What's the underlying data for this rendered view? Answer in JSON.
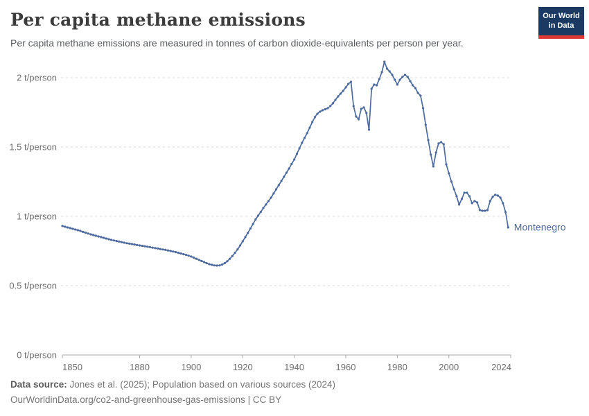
{
  "header": {
    "title": "Per capita methane emissions",
    "subtitle": "Per capita methane emissions are measured in tonnes of carbon dioxide-equivalents per person per year.",
    "logo": {
      "line1": "Our World",
      "line2": "in Data",
      "bg_color": "#1a3a64",
      "bar_color": "#dc3b33"
    }
  },
  "chart_data": {
    "type": "line",
    "title": "Per capita methane emissions",
    "entity": "Montenegro",
    "unit": "t/person",
    "xlim": [
      1850,
      2024
    ],
    "ylim": [
      0,
      2.15
    ],
    "grid": "horizontal-dashed",
    "legend_position": "end-of-line-label",
    "line_color": "#4C6A9D",
    "marker": "dot",
    "x_ticks": [
      1850,
      1880,
      1900,
      1920,
      1940,
      1960,
      1980,
      2000,
      2024
    ],
    "x_tick_labels": [
      "1850",
      "1880",
      "1900",
      "1920",
      "1940",
      "1960",
      "1980",
      "2000",
      "2024"
    ],
    "y_ticks": [
      {
        "value": 0,
        "label": "0 t/person"
      },
      {
        "value": 0.5,
        "label": "0.5 t/person"
      },
      {
        "value": 1,
        "label": "1 t/person"
      },
      {
        "value": 1.5,
        "label": "1.5 t/person"
      },
      {
        "value": 2,
        "label": "2 t/person"
      }
    ],
    "x": [
      1850,
      1851,
      1852,
      1853,
      1854,
      1855,
      1856,
      1857,
      1858,
      1859,
      1860,
      1861,
      1862,
      1863,
      1864,
      1865,
      1866,
      1867,
      1868,
      1869,
      1870,
      1871,
      1872,
      1873,
      1874,
      1875,
      1876,
      1877,
      1878,
      1879,
      1880,
      1881,
      1882,
      1883,
      1884,
      1885,
      1886,
      1887,
      1888,
      1889,
      1890,
      1891,
      1892,
      1893,
      1894,
      1895,
      1896,
      1897,
      1898,
      1899,
      1900,
      1901,
      1902,
      1903,
      1904,
      1905,
      1906,
      1907,
      1908,
      1909,
      1910,
      1911,
      1912,
      1913,
      1914,
      1915,
      1916,
      1917,
      1918,
      1919,
      1920,
      1921,
      1922,
      1923,
      1924,
      1925,
      1926,
      1927,
      1928,
      1929,
      1930,
      1931,
      1932,
      1933,
      1934,
      1935,
      1936,
      1937,
      1938,
      1939,
      1940,
      1941,
      1942,
      1943,
      1944,
      1945,
      1946,
      1947,
      1948,
      1949,
      1950,
      1951,
      1952,
      1953,
      1954,
      1955,
      1956,
      1957,
      1958,
      1959,
      1960,
      1961,
      1962,
      1963,
      1964,
      1965,
      1966,
      1967,
      1968,
      1969,
      1970,
      1971,
      1972,
      1973,
      1974,
      1975,
      1976,
      1977,
      1978,
      1979,
      1980,
      1981,
      1982,
      1983,
      1984,
      1985,
      1986,
      1987,
      1988,
      1989,
      1990,
      1991,
      1992,
      1993,
      1994,
      1995,
      1996,
      1997,
      1998,
      1999,
      2000,
      2001,
      2002,
      2003,
      2004,
      2005,
      2006,
      2007,
      2008,
      2009,
      2010,
      2011,
      2012,
      2013,
      2014,
      2015,
      2016,
      2017,
      2018,
      2019,
      2020,
      2021,
      2022,
      2023
    ],
    "values": [
      0.93,
      0.925,
      0.92,
      0.915,
      0.91,
      0.905,
      0.9,
      0.895,
      0.888,
      0.882,
      0.876,
      0.87,
      0.865,
      0.86,
      0.855,
      0.85,
      0.845,
      0.84,
      0.835,
      0.83,
      0.826,
      0.822,
      0.818,
      0.814,
      0.81,
      0.806,
      0.803,
      0.8,
      0.797,
      0.793,
      0.79,
      0.787,
      0.784,
      0.781,
      0.778,
      0.774,
      0.771,
      0.768,
      0.764,
      0.761,
      0.758,
      0.754,
      0.75,
      0.746,
      0.742,
      0.737,
      0.732,
      0.727,
      0.722,
      0.716,
      0.71,
      0.702,
      0.694,
      0.686,
      0.678,
      0.67,
      0.662,
      0.655,
      0.65,
      0.646,
      0.645,
      0.646,
      0.652,
      0.662,
      0.676,
      0.694,
      0.714,
      0.737,
      0.762,
      0.79,
      0.82,
      0.85,
      0.88,
      0.912,
      0.945,
      0.978,
      1.005,
      1.032,
      1.06,
      1.085,
      1.11,
      1.135,
      1.165,
      1.195,
      1.225,
      1.255,
      1.285,
      1.315,
      1.345,
      1.378,
      1.41,
      1.45,
      1.49,
      1.53,
      1.565,
      1.6,
      1.64,
      1.68,
      1.715,
      1.74,
      1.755,
      1.765,
      1.772,
      1.78,
      1.795,
      1.815,
      1.84,
      1.865,
      1.885,
      1.905,
      1.93,
      1.955,
      1.97,
      1.795,
      1.72,
      1.7,
      1.775,
      1.785,
      1.745,
      1.625,
      1.92,
      1.95,
      1.945,
      1.99,
      2.04,
      2.115,
      2.065,
      2.045,
      2.02,
      1.985,
      1.95,
      1.985,
      2.005,
      2.02,
      2.005,
      1.975,
      1.945,
      1.925,
      1.89,
      1.87,
      1.78,
      1.66,
      1.55,
      1.445,
      1.36,
      1.46,
      1.525,
      1.535,
      1.52,
      1.375,
      1.31,
      1.25,
      1.195,
      1.145,
      1.085,
      1.125,
      1.17,
      1.17,
      1.145,
      1.095,
      1.11,
      1.1,
      1.045,
      1.04,
      1.04,
      1.045,
      1.11,
      1.14,
      1.155,
      1.15,
      1.135,
      1.095,
      1.03,
      0.92
    ]
  },
  "footer": {
    "datasource_label": "Data source:",
    "datasource_text": " Jones et al. (2025); Population based on various sources (2024)",
    "license_line": "OurWorldinData.org/co2-and-greenhouse-gas-emissions | CC BY"
  }
}
